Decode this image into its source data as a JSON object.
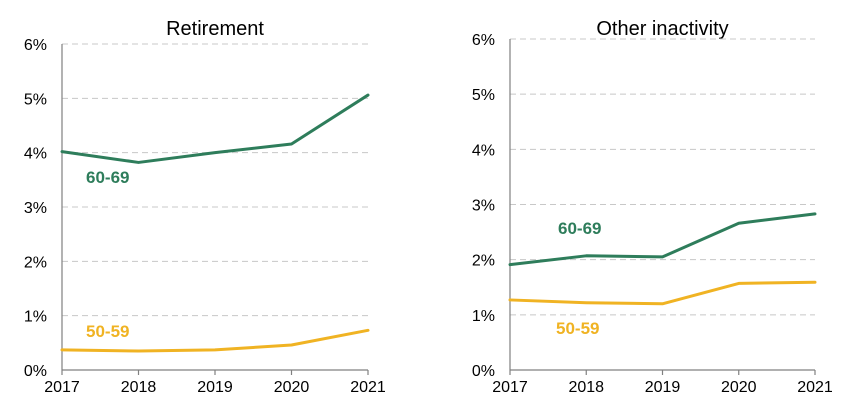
{
  "chart_data": [
    {
      "type": "line",
      "title": "Retirement",
      "categories": [
        "2017",
        "2018",
        "2019",
        "2020",
        "2021"
      ],
      "y_ticks": [
        "0%",
        "1%",
        "2%",
        "3%",
        "4%",
        "5%",
        "6%"
      ],
      "ylim": [
        0,
        6
      ],
      "grid": true,
      "series": [
        {
          "name": "60-69",
          "values": [
            4.02,
            3.82,
            4.0,
            4.16,
            5.06
          ]
        },
        {
          "name": "50-59",
          "values": [
            0.37,
            0.35,
            0.37,
            0.46,
            0.73
          ]
        }
      ]
    },
    {
      "type": "line",
      "title": "Other inactivity",
      "categories": [
        "2017",
        "2018",
        "2019",
        "2020",
        "2021"
      ],
      "y_ticks": [
        "0%",
        "1%",
        "2%",
        "3%",
        "4%",
        "5%",
        "6%"
      ],
      "ylim": [
        0,
        6
      ],
      "grid": true,
      "series": [
        {
          "name": "60-69",
          "values": [
            1.91,
            2.07,
            2.05,
            2.66,
            2.83
          ]
        },
        {
          "name": "50-59",
          "values": [
            1.27,
            1.22,
            1.2,
            1.57,
            1.59
          ]
        }
      ]
    }
  ],
  "colors": {
    "60-69": "#2e7d5b",
    "50-59": "#f0b323"
  }
}
